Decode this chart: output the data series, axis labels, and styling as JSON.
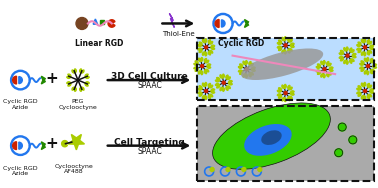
{
  "bg_color": "#ffffff",
  "row1_labels": [
    "Linear RGD",
    "Thiol-Ene",
    "Cyclic RGD"
  ],
  "row2_labels": [
    "Cyclic RGD\nAzide",
    "PEG\nCyclooctyne",
    "3D Cell Culture",
    "SPAAC"
  ],
  "row3_labels": [
    "Cyclic RGD\nAzide",
    "Cyclooctyne\nAF488",
    "Cell Targeting",
    "SPAAC"
  ],
  "colors": {
    "blue": "#2277ee",
    "red": "#cc2200",
    "dark_red": "#990000",
    "green": "#228800",
    "bright_green": "#33cc00",
    "olive": "#888800",
    "yellow_green": "#aacc00",
    "brown": "#774422",
    "pink": "#ee88bb",
    "purple": "#8833cc",
    "gray": "#999999",
    "dark_gray": "#555555",
    "light_blue_bg": "#bbddff",
    "gray_bg": "#aaaaaa",
    "black": "#111111",
    "white": "#ffffff"
  }
}
